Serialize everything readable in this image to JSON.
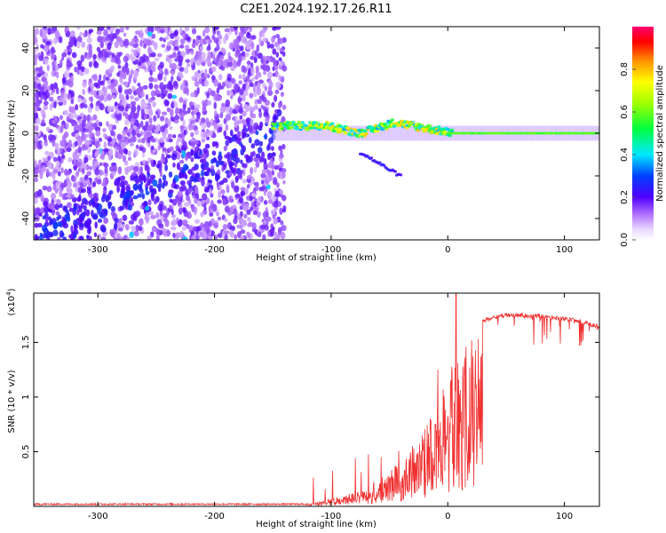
{
  "title": "C2E1.2024.192.17.26.R11",
  "chart_data": [
    {
      "type": "heatmap",
      "xlabel": "Height of straight line (km)",
      "ylabel": "Frequency (Hz)",
      "xlim": [
        -355,
        130
      ],
      "ylim": [
        -50,
        50
      ],
      "x_ticks": [
        -300,
        -200,
        -100,
        0,
        100
      ],
      "y_ticks": [
        -40,
        -20,
        0,
        20,
        40
      ],
      "colorbar": {
        "label": "Normalized spectral amplitude",
        "range": [
          0,
          1
        ],
        "ticks": [
          "0.0",
          "0.2",
          "0.4",
          "0.6",
          "0.8"
        ]
      },
      "grid": false
    },
    {
      "type": "line",
      "xlabel": "Height of straight line (km)",
      "ylabel": "SNR (10 * v/v)",
      "y_multiplier": "(x10",
      "y_multiplier_exp": "4",
      "xlim": [
        -355,
        130
      ],
      "ylim": [
        0,
        1.95
      ],
      "x_ticks": [
        -300,
        -200,
        -100,
        0,
        100
      ],
      "y_ticks": [
        "0.5",
        "1",
        "1.5"
      ],
      "color": "#f03030",
      "profile": [
        {
          "x": -355,
          "y": 0.02
        },
        {
          "x": -120,
          "y": 0.02
        },
        {
          "x": -100,
          "y": 0.07
        },
        {
          "x": -80,
          "y": 0.13
        },
        {
          "x": -60,
          "y": 0.22
        },
        {
          "x": -40,
          "y": 0.42
        },
        {
          "x": -25,
          "y": 0.62
        },
        {
          "x": -10,
          "y": 0.95
        },
        {
          "x": 5,
          "y": 1.25
        },
        {
          "x": 20,
          "y": 1.55
        },
        {
          "x": 30,
          "y": 1.72
        },
        {
          "x": 50,
          "y": 1.77
        },
        {
          "x": 80,
          "y": 1.76
        },
        {
          "x": 110,
          "y": 1.72
        },
        {
          "x": 130,
          "y": 1.66
        }
      ],
      "grid": false
    }
  ]
}
